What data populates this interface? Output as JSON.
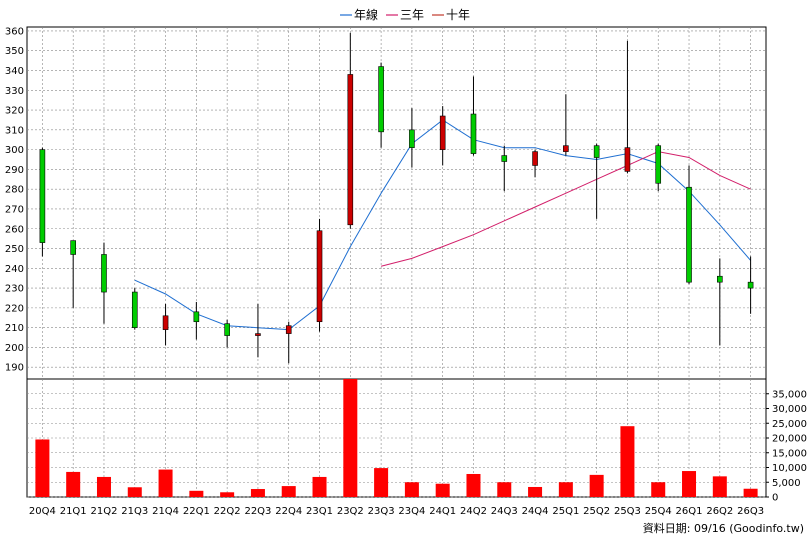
{
  "legend": [
    {
      "label": "年線",
      "color": "#1f6fd1"
    },
    {
      "label": "三年",
      "color": "#d21f6a"
    },
    {
      "label": "十年",
      "color": "#c0392b"
    }
  ],
  "footer_text": "資料日期: 09/16  (Goodinfo.tw)",
  "colors": {
    "up": "#00cc00",
    "down": "#cc0000",
    "volume": "#ff0000",
    "grid": "#888888"
  },
  "chart_data": [
    {
      "type": "candlestick",
      "categories": [
        "20Q4",
        "21Q1",
        "21Q2",
        "21Q3",
        "21Q4",
        "22Q1",
        "22Q2",
        "22Q3",
        "22Q4",
        "23Q1",
        "23Q2",
        "23Q3",
        "23Q4",
        "24Q1",
        "24Q2",
        "24Q3",
        "24Q4",
        "25Q1",
        "25Q2",
        "25Q3",
        "25Q4",
        "26Q1",
        "26Q2",
        "26Q3"
      ],
      "ylim": [
        180,
        362
      ],
      "y_ticks": [
        190,
        200,
        210,
        220,
        230,
        240,
        250,
        260,
        270,
        280,
        290,
        300,
        310,
        320,
        330,
        340,
        350,
        360
      ],
      "candles": [
        {
          "o": 253,
          "h": 301,
          "l": 246,
          "c": 300
        },
        {
          "o": 247,
          "h": 254,
          "l": 220,
          "c": 254
        },
        {
          "o": 228,
          "h": 253,
          "l": 212,
          "c": 247
        },
        {
          "o": 210,
          "h": 230,
          "l": 209,
          "c": 228
        },
        {
          "o": 216,
          "h": 222,
          "l": 201,
          "c": 209
        },
        {
          "o": 213,
          "h": 223,
          "l": 204,
          "c": 218
        },
        {
          "o": 206,
          "h": 214,
          "l": 200,
          "c": 212
        },
        {
          "o": 207,
          "h": 222,
          "l": 195,
          "c": 206
        },
        {
          "o": 211,
          "h": 213,
          "l": 192,
          "c": 207
        },
        {
          "o": 259,
          "h": 265,
          "l": 208,
          "c": 213
        },
        {
          "o": 338,
          "h": 359,
          "l": 260,
          "c": 262
        },
        {
          "o": 309,
          "h": 344,
          "l": 301,
          "c": 342
        },
        {
          "o": 301,
          "h": 321,
          "l": 291,
          "c": 310
        },
        {
          "o": 317,
          "h": 322,
          "l": 292,
          "c": 300
        },
        {
          "o": 298,
          "h": 337,
          "l": 297,
          "c": 318
        },
        {
          "o": 294,
          "h": 302,
          "l": 279,
          "c": 297
        },
        {
          "o": 299,
          "h": 300,
          "l": 286,
          "c": 292
        },
        {
          "o": 302,
          "h": 328,
          "l": 297,
          "c": 299
        },
        {
          "o": 296,
          "h": 303,
          "l": 265,
          "c": 302
        },
        {
          "o": 301,
          "h": 355,
          "l": 288,
          "c": 289
        },
        {
          "o": 283,
          "h": 303,
          "l": 279,
          "c": 302
        },
        {
          "o": 233,
          "h": 292,
          "l": 232,
          "c": 281
        },
        {
          "o": 233,
          "h": 245,
          "l": 201,
          "c": 236
        },
        {
          "o": 230,
          "h": 246,
          "l": 217,
          "c": 233
        }
      ],
      "series": [
        {
          "name": "年線",
          "color": "#1f6fd1",
          "values": [
            null,
            null,
            null,
            234,
            227,
            217,
            211,
            210,
            209,
            221,
            251,
            278,
            303,
            315,
            305,
            301,
            301,
            297,
            295,
            298,
            293,
            279,
            262,
            244
          ]
        },
        {
          "name": "三年",
          "color": "#d21f6a",
          "values": [
            null,
            null,
            null,
            null,
            null,
            null,
            null,
            null,
            null,
            null,
            null,
            241,
            245,
            251,
            257,
            264,
            271,
            278,
            285,
            292,
            299,
            296,
            287,
            280
          ]
        }
      ]
    },
    {
      "type": "bar",
      "categories": [
        "20Q4",
        "21Q1",
        "21Q2",
        "21Q3",
        "21Q4",
        "22Q1",
        "22Q2",
        "22Q3",
        "22Q4",
        "23Q1",
        "23Q2",
        "23Q3",
        "23Q4",
        "24Q1",
        "24Q2",
        "24Q3",
        "24Q4",
        "25Q1",
        "25Q2",
        "25Q3",
        "25Q4",
        "26Q1",
        "26Q2",
        "26Q3"
      ],
      "values": [
        19500,
        8500,
        6800,
        3300,
        9300,
        2100,
        1600,
        2700,
        3700,
        6800,
        40000,
        9800,
        5000,
        4500,
        7800,
        5000,
        3400,
        5000,
        7500,
        24000,
        5000,
        8800,
        7000,
        2800
      ],
      "ylim": [
        0,
        40000
      ],
      "y_tick_labels": [
        "0",
        "5,000",
        "10,000",
        "15,000",
        "20,000",
        "25,000",
        "30,000",
        "35,000"
      ],
      "y_tick_values": [
        0,
        5000,
        10000,
        15000,
        20000,
        25000,
        30000,
        35000
      ]
    }
  ]
}
